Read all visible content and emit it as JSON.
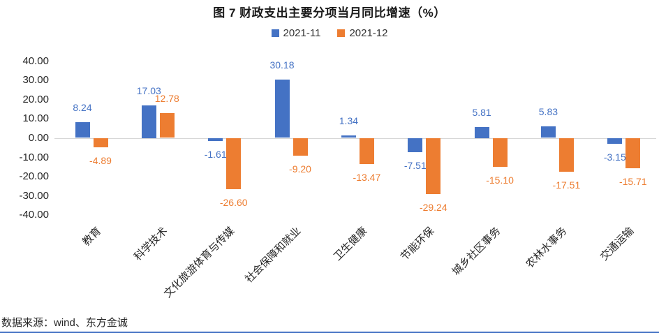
{
  "page": {
    "title": "图 7  财政支出主要分项当月同比增速（%）",
    "source_note": "数据来源：wind、东方金诚"
  },
  "colors": {
    "series_blue": "#4472C4",
    "series_orange": "#ED7D31",
    "axis_line": "#d6d6d6",
    "footer_rule": "#4472C4",
    "text": "#262626"
  },
  "chart_data": {
    "type": "bar",
    "title": "图 7  财政支出主要分项当月同比增速（%）",
    "categories": [
      "教育",
      "科学技术",
      "文化旅游体育与传媒",
      "社会保障和就业",
      "卫生健康",
      "节能环保",
      "城乡社区事务",
      "农林水事务",
      "交通运输"
    ],
    "series": [
      {
        "name": "2021-11",
        "color": "#4472C4",
        "values": [
          8.24,
          17.03,
          -1.61,
          30.18,
          1.34,
          -7.51,
          5.81,
          5.83,
          -3.15
        ]
      },
      {
        "name": "2021-12",
        "color": "#ED7D31",
        "values": [
          -4.89,
          12.78,
          -26.6,
          -9.2,
          -13.47,
          -29.24,
          -15.1,
          -17.51,
          -15.71
        ]
      }
    ],
    "ylim": [
      -40,
      40
    ],
    "ytick_step": 10,
    "ytick_labels": [
      "40.00",
      "30.00",
      "20.00",
      "10.00",
      "0.00",
      "-10.00",
      "-20.00",
      "-30.00",
      "-40.00"
    ],
    "ytick_values": [
      40,
      30,
      20,
      10,
      0,
      -10,
      -20,
      -30,
      -40
    ],
    "legend_position": "top",
    "grid": false,
    "data_labels": true,
    "xlabel": "",
    "ylabel": ""
  }
}
